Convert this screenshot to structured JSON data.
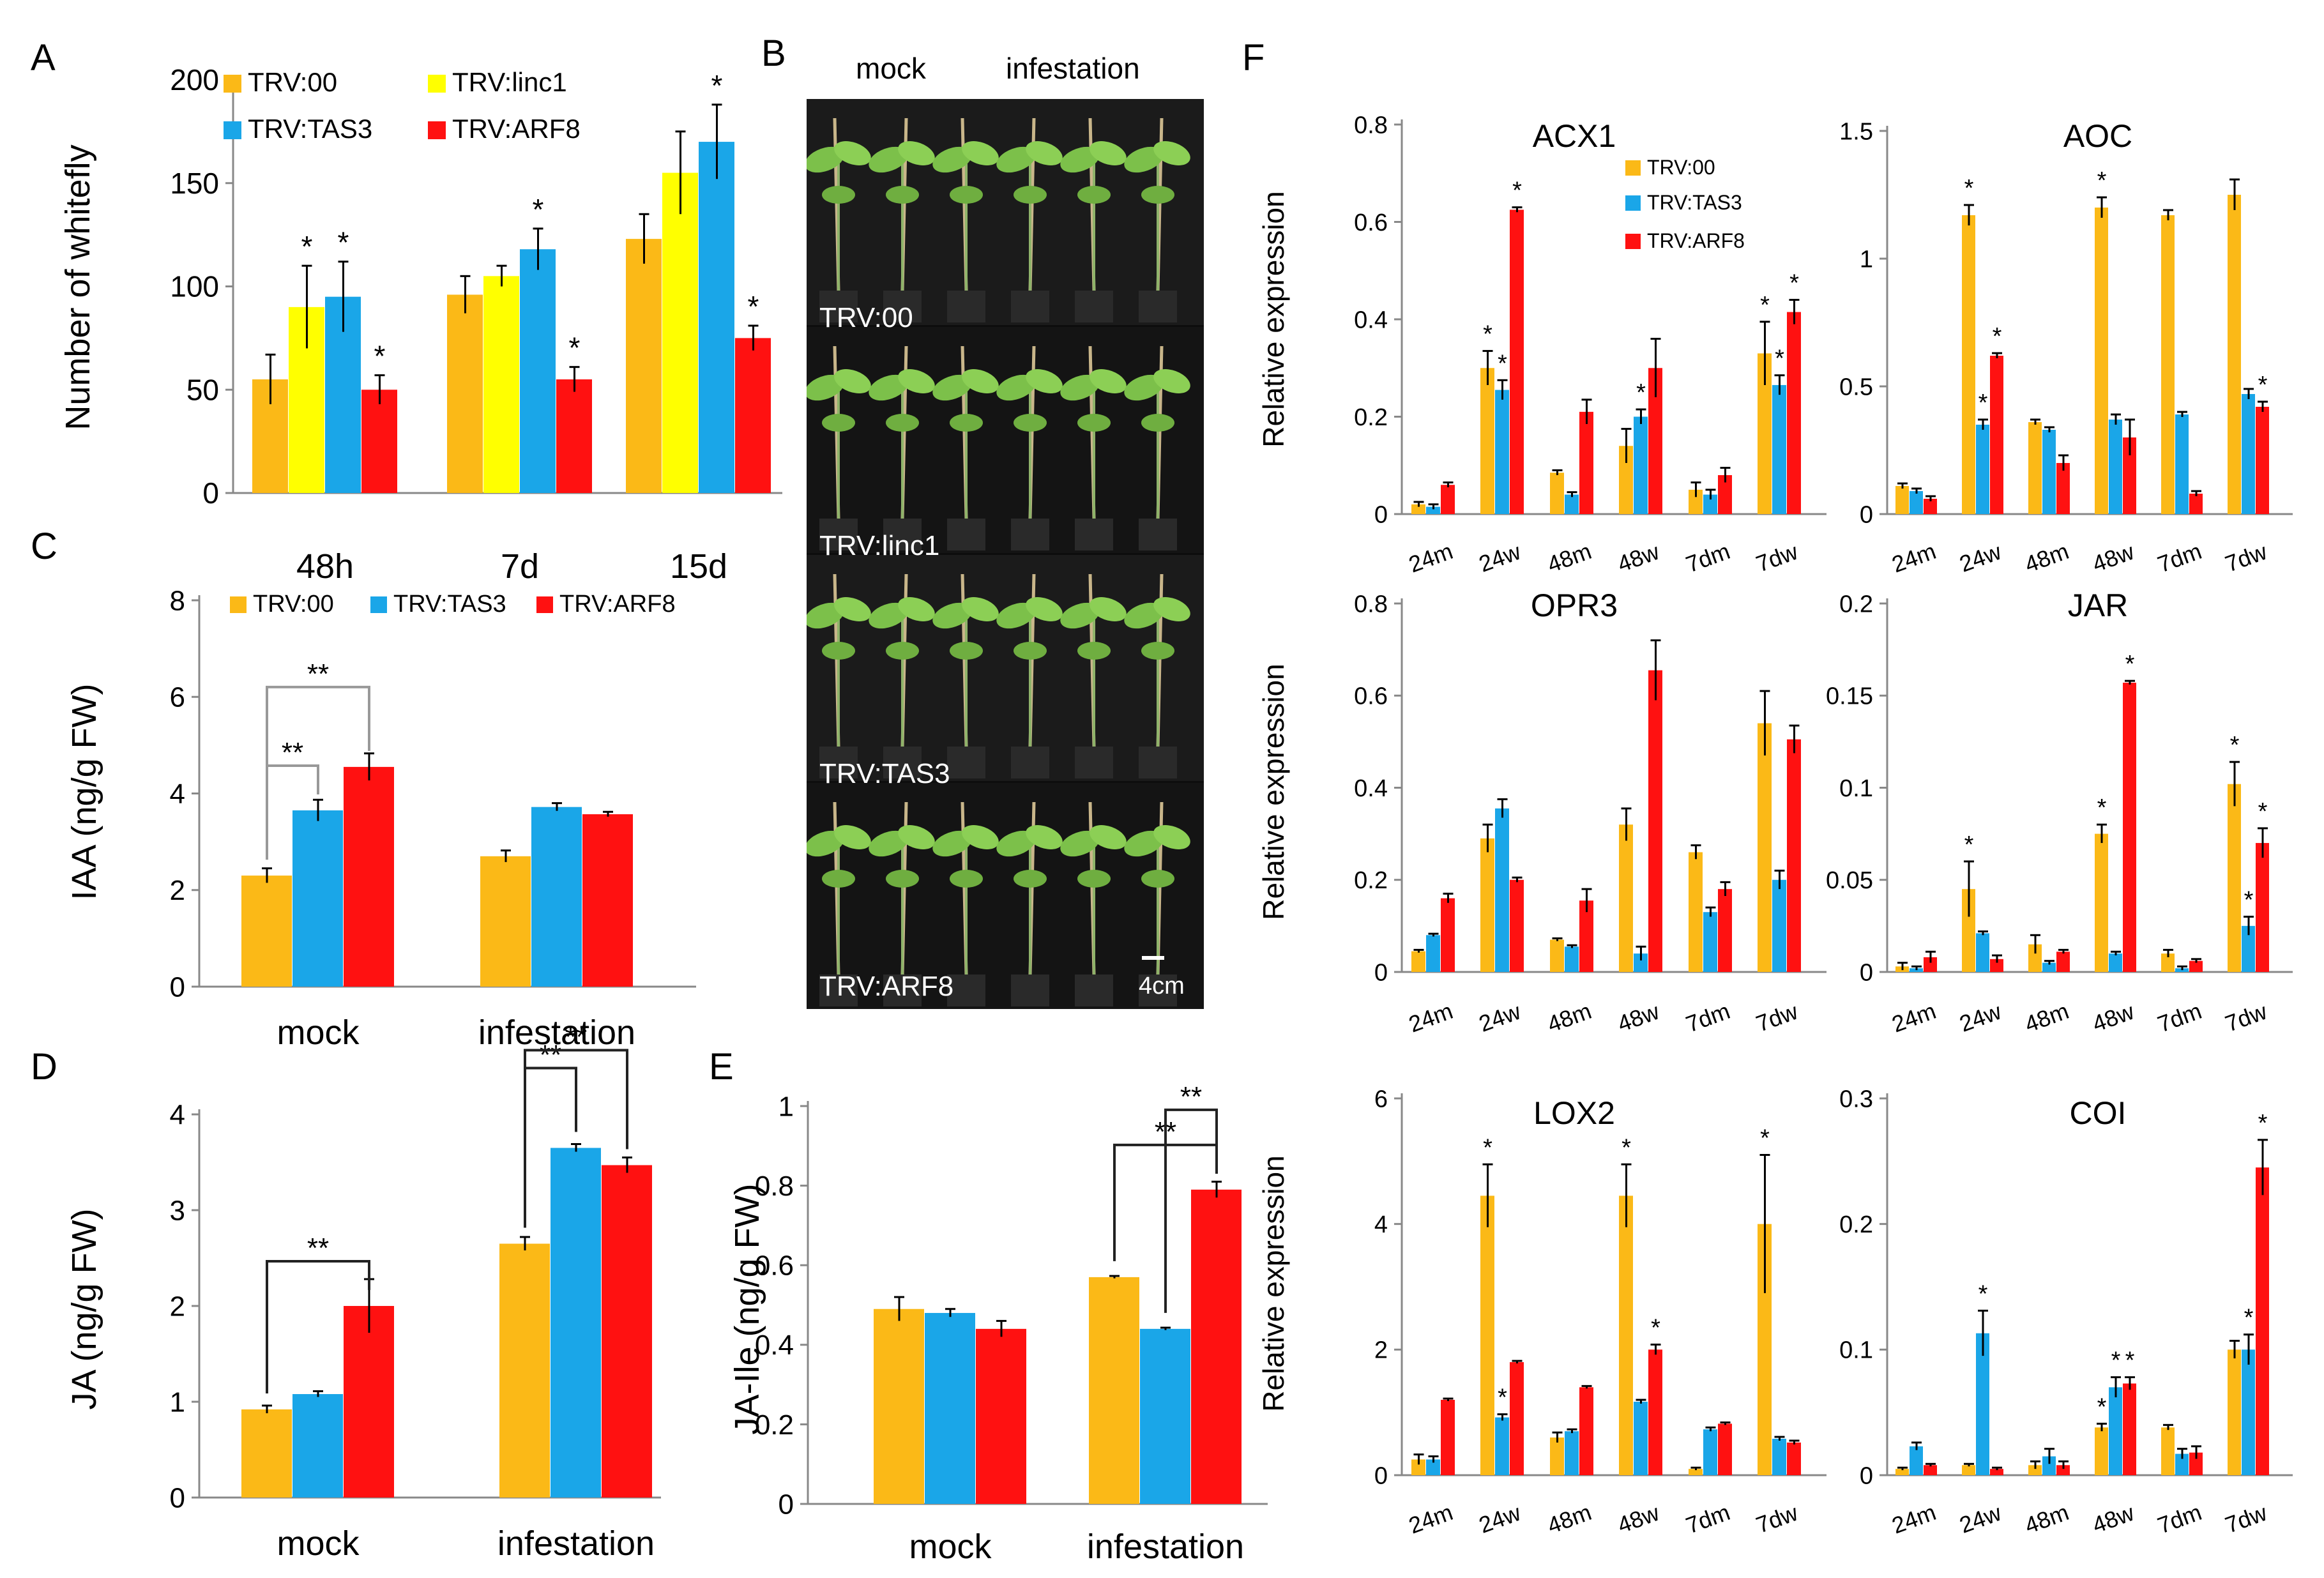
{
  "colors": {
    "TRV:00": "#FBB917",
    "TRV:linc1": "#FFFF00",
    "TRV:TAS3": "#1AA6E8",
    "TRV:ARF8": "#FF1111"
  },
  "panel_b": {
    "letter": "B",
    "col_mock": "mock",
    "col_infestation": "infestation",
    "rows": [
      "TRV:00",
      "TRV:linc1",
      "TRV:TAS3",
      "TRV:ARF8"
    ],
    "scale_label": "4cm"
  },
  "chart_data": [
    {
      "id": "A",
      "type": "bar",
      "letter": "A",
      "ylabel": "Number of whitefly",
      "ylim": [
        0,
        200
      ],
      "yticks": [
        "0",
        "50",
        "100",
        "150",
        "200"
      ],
      "categories": [
        "48h",
        "7d",
        "15d"
      ],
      "legend": [
        "TRV:00",
        "TRV:linc1",
        "TRV:TAS3",
        "TRV:ARF8"
      ],
      "series": [
        {
          "name": "TRV:00",
          "values": [
            55,
            96,
            123
          ],
          "errors": [
            12,
            9,
            12
          ],
          "sig": [
            "",
            "",
            ""
          ]
        },
        {
          "name": "TRV:linc1",
          "values": [
            90,
            105,
            155
          ],
          "errors": [
            20,
            5,
            20
          ],
          "sig": [
            "*",
            "",
            ""
          ]
        },
        {
          "name": "TRV:TAS3",
          "values": [
            95,
            118,
            170
          ],
          "errors": [
            17,
            10,
            18
          ],
          "sig": [
            "*",
            "*",
            "*"
          ]
        },
        {
          "name": "TRV:ARF8",
          "values": [
            50,
            55,
            75
          ],
          "errors": [
            7,
            6,
            6
          ],
          "sig": [
            "*",
            "*",
            "*"
          ]
        }
      ]
    },
    {
      "id": "C",
      "type": "bar",
      "letter": "C",
      "ylabel": "IAA (ng/g FW)",
      "ylim": [
        0,
        8
      ],
      "yticks": [
        "0",
        "2",
        "4",
        "6",
        "8"
      ],
      "categories": [
        "mock",
        "infestation"
      ],
      "legend": [
        "TRV:00",
        "TRV:TAS3",
        "TRV:ARF8"
      ],
      "series": [
        {
          "name": "TRV:00",
          "values": [
            2.3,
            2.7
          ],
          "errors": [
            0.15,
            0.12
          ]
        },
        {
          "name": "TRV:TAS3",
          "values": [
            3.65,
            3.72
          ],
          "errors": [
            0.22,
            0.08
          ]
        },
        {
          "name": "TRV:ARF8",
          "values": [
            4.55,
            3.57
          ],
          "errors": [
            0.28,
            0.05
          ]
        }
      ],
      "brackets": [
        {
          "group": 0,
          "from": 0,
          "to": 1,
          "label": "**"
        },
        {
          "group": 0,
          "from": 0,
          "to": 2,
          "label": "**"
        }
      ]
    },
    {
      "id": "D",
      "type": "bar",
      "letter": "D",
      "ylabel": "JA (ng/g FW)",
      "ylim": [
        0,
        4
      ],
      "yticks": [
        "0",
        "1",
        "2",
        "3",
        "4"
      ],
      "categories": [
        "mock",
        "infestation"
      ],
      "series": [
        {
          "name": "TRV:00",
          "values": [
            0.92,
            2.65
          ],
          "errors": [
            0.04,
            0.07
          ]
        },
        {
          "name": "TRV:TAS3",
          "values": [
            1.08,
            3.65
          ],
          "errors": [
            0.03,
            0.04
          ]
        },
        {
          "name": "TRV:ARF8",
          "values": [
            2.0,
            3.47
          ],
          "errors": [
            0.28,
            0.08
          ]
        }
      ],
      "brackets": [
        {
          "group": 0,
          "from": 0,
          "to": 2,
          "label": "**"
        },
        {
          "group": 1,
          "from": 0,
          "to": 1,
          "label": "**"
        },
        {
          "group": 1,
          "from": 0,
          "to": 2,
          "label": "**"
        }
      ]
    },
    {
      "id": "E",
      "type": "bar",
      "letter": "E",
      "ylabel": "JA-Ile (ng/g FW)",
      "ylim": [
        0,
        1
      ],
      "yticks": [
        "0",
        "0.2",
        "0.4",
        "0.6",
        "0.8",
        "1"
      ],
      "categories": [
        "mock",
        "infestation"
      ],
      "series": [
        {
          "name": "TRV:00",
          "values": [
            0.49,
            0.57
          ],
          "errors": [
            0.03,
            0.003
          ]
        },
        {
          "name": "TRV:TAS3",
          "values": [
            0.48,
            0.44
          ],
          "errors": [
            0.01,
            0.003
          ]
        },
        {
          "name": "TRV:ARF8",
          "values": [
            0.44,
            0.79
          ],
          "errors": [
            0.02,
            0.02
          ]
        }
      ],
      "brackets": [
        {
          "group": 1,
          "from": 0,
          "to": 2,
          "label": "**"
        },
        {
          "group": 1,
          "from": 1,
          "to": 2,
          "label": "**"
        }
      ]
    },
    {
      "id": "F_ACX1",
      "type": "bar",
      "letter": "F",
      "title": "ACX1",
      "ylabel": "Relative expression",
      "ylim": [
        0,
        0.8
      ],
      "yticks": [
        "0",
        "0.2",
        "0.4",
        "0.6",
        "0.8"
      ],
      "categories": [
        "24m",
        "24w",
        "48m",
        "48w",
        "7dm",
        "7dw"
      ],
      "legend": [
        "TRV:00",
        "TRV:TAS3",
        "TRV:ARF8"
      ],
      "series": [
        {
          "name": "TRV:00",
          "values": [
            0.02,
            0.3,
            0.085,
            0.14,
            0.05,
            0.33
          ],
          "errors": [
            0.005,
            0.035,
            0.005,
            0.035,
            0.015,
            0.065
          ],
          "sig": [
            "",
            "*",
            "",
            "",
            "",
            "*"
          ]
        },
        {
          "name": "TRV:TAS3",
          "values": [
            0.015,
            0.255,
            0.04,
            0.2,
            0.04,
            0.265
          ],
          "errors": [
            0.005,
            0.02,
            0.005,
            0.015,
            0.01,
            0.02
          ],
          "sig": [
            "",
            "*",
            "",
            "*",
            "",
            "*"
          ]
        },
        {
          "name": "TRV:ARF8",
          "values": [
            0.06,
            0.625,
            0.21,
            0.3,
            0.08,
            0.415
          ],
          "errors": [
            0.005,
            0.005,
            0.025,
            0.06,
            0.015,
            0.025
          ],
          "sig": [
            "",
            "*",
            "",
            "",
            "",
            "*"
          ]
        }
      ]
    },
    {
      "id": "F_AOC",
      "type": "bar",
      "title": "AOC",
      "ylim": [
        0,
        1.5
      ],
      "yticks": [
        "0",
        "0.5",
        "1",
        "1.5"
      ],
      "categories": [
        "24m",
        "24w",
        "48m",
        "48w",
        "7dm",
        "7dw"
      ],
      "series": [
        {
          "name": "TRV:00",
          "values": [
            0.11,
            1.17,
            0.36,
            1.2,
            1.17,
            1.25
          ],
          "errors": [
            0.01,
            0.04,
            0.01,
            0.04,
            0.02,
            0.06
          ],
          "sig": [
            "",
            "*",
            "",
            "*",
            "",
            ""
          ]
        },
        {
          "name": "TRV:TAS3",
          "values": [
            0.09,
            0.35,
            0.33,
            0.37,
            0.39,
            0.47
          ],
          "errors": [
            0.01,
            0.02,
            0.01,
            0.02,
            0.01,
            0.02
          ],
          "sig": [
            "",
            "*",
            "",
            "",
            "",
            ""
          ]
        },
        {
          "name": "TRV:ARF8",
          "values": [
            0.06,
            0.62,
            0.2,
            0.3,
            0.08,
            0.42
          ],
          "errors": [
            0.01,
            0.01,
            0.03,
            0.07,
            0.01,
            0.02
          ],
          "sig": [
            "",
            "*",
            "",
            "",
            "",
            "*"
          ]
        }
      ]
    },
    {
      "id": "F_OPR3",
      "type": "bar",
      "title": "OPR3",
      "ylabel": "Relative expression",
      "ylim": [
        0,
        0.8
      ],
      "yticks": [
        "0",
        "0.2",
        "0.4",
        "0.6",
        "0.8"
      ],
      "categories": [
        "24m",
        "24w",
        "48m",
        "48w",
        "7dm",
        "7dw"
      ],
      "series": [
        {
          "name": "TRV:00",
          "values": [
            0.045,
            0.29,
            0.07,
            0.32,
            0.26,
            0.54
          ],
          "errors": [
            0.003,
            0.03,
            0.003,
            0.035,
            0.015,
            0.07
          ],
          "sig": [
            "",
            "",
            "",
            "",
            "",
            ""
          ]
        },
        {
          "name": "TRV:TAS3",
          "values": [
            0.08,
            0.355,
            0.055,
            0.04,
            0.13,
            0.2
          ],
          "errors": [
            0.003,
            0.02,
            0.003,
            0.015,
            0.01,
            0.02
          ],
          "sig": [
            "",
            "",
            "",
            "",
            "",
            ""
          ]
        },
        {
          "name": "TRV:ARF8",
          "values": [
            0.16,
            0.2,
            0.155,
            0.655,
            0.18,
            0.505
          ],
          "errors": [
            0.01,
            0.005,
            0.025,
            0.065,
            0.015,
            0.03
          ],
          "sig": [
            "",
            "",
            "",
            "",
            "",
            ""
          ]
        }
      ]
    },
    {
      "id": "F_JAR",
      "type": "bar",
      "title": "JAR",
      "ylim": [
        0,
        0.2
      ],
      "yticks": [
        "0",
        "0.05",
        "0.1",
        "0.15",
        "0.2"
      ],
      "categories": [
        "24m",
        "24w",
        "48m",
        "48w",
        "7dm",
        "7dw"
      ],
      "series": [
        {
          "name": "TRV:00",
          "values": [
            0.003,
            0.045,
            0.015,
            0.075,
            0.01,
            0.102
          ],
          "errors": [
            0.002,
            0.015,
            0.005,
            0.005,
            0.002,
            0.012
          ],
          "sig": [
            "",
            "*",
            "",
            "*",
            "",
            "*"
          ]
        },
        {
          "name": "TRV:TAS3",
          "values": [
            0.002,
            0.021,
            0.005,
            0.01,
            0.002,
            0.025
          ],
          "errors": [
            0.001,
            0.001,
            0.001,
            0.001,
            0.001,
            0.005
          ],
          "sig": [
            "",
            "",
            "",
            "",
            "",
            "*"
          ]
        },
        {
          "name": "TRV:ARF8",
          "values": [
            0.008,
            0.007,
            0.011,
            0.157,
            0.006,
            0.07
          ],
          "errors": [
            0.003,
            0.002,
            0.001,
            0.001,
            0.001,
            0.008
          ],
          "sig": [
            "",
            "",
            "",
            "*",
            "",
            "*"
          ]
        }
      ]
    },
    {
      "id": "F_LOX2",
      "type": "bar",
      "title": "LOX2",
      "ylabel": "Relative expression",
      "ylim": [
        0,
        6
      ],
      "yticks": [
        "0",
        "2",
        "4",
        "6"
      ],
      "categories": [
        "24m",
        "24w",
        "48m",
        "48w",
        "7dm",
        "7dw"
      ],
      "series": [
        {
          "name": "TRV:00",
          "values": [
            0.25,
            4.45,
            0.6,
            4.45,
            0.1,
            4.0
          ],
          "errors": [
            0.08,
            0.5,
            0.08,
            0.5,
            0.02,
            1.1
          ],
          "sig": [
            "",
            "*",
            "",
            "*",
            "",
            "*"
          ]
        },
        {
          "name": "TRV:TAS3",
          "values": [
            0.25,
            0.92,
            0.7,
            1.17,
            0.73,
            0.58
          ],
          "errors": [
            0.05,
            0.05,
            0.03,
            0.03,
            0.03,
            0.03
          ],
          "sig": [
            "",
            "*",
            "",
            "",
            "",
            ""
          ]
        },
        {
          "name": "TRV:ARF8",
          "values": [
            1.2,
            1.8,
            1.4,
            2.0,
            0.82,
            0.52
          ],
          "errors": [
            0.02,
            0.02,
            0.02,
            0.08,
            0.02,
            0.03
          ],
          "sig": [
            "",
            "",
            "",
            "*",
            "",
            ""
          ]
        }
      ]
    },
    {
      "id": "F_COI",
      "type": "bar",
      "title": "COI",
      "ylim": [
        0,
        0.3
      ],
      "yticks": [
        "0",
        "0.1",
        "0.2",
        "0.3"
      ],
      "categories": [
        "24m",
        "24w",
        "48m",
        "48w",
        "7dm",
        "7dw"
      ],
      "series": [
        {
          "name": "TRV:00",
          "values": [
            0.005,
            0.008,
            0.008,
            0.038,
            0.038,
            0.1
          ],
          "errors": [
            0.001,
            0.001,
            0.003,
            0.003,
            0.002,
            0.007
          ],
          "sig": [
            "",
            "",
            "",
            "*",
            "",
            ""
          ]
        },
        {
          "name": "TRV:TAS3",
          "values": [
            0.023,
            0.113,
            0.015,
            0.07,
            0.017,
            0.1
          ],
          "errors": [
            0.003,
            0.018,
            0.006,
            0.008,
            0.004,
            0.012
          ],
          "sig": [
            "",
            "*",
            "",
            "*",
            "",
            "*"
          ]
        },
        {
          "name": "TRV:ARF8",
          "values": [
            0.008,
            0.005,
            0.008,
            0.073,
            0.018,
            0.245
          ],
          "errors": [
            0.001,
            0.001,
            0.003,
            0.005,
            0.005,
            0.022
          ],
          "sig": [
            "",
            "",
            "",
            "*",
            "",
            "*"
          ]
        }
      ]
    }
  ]
}
